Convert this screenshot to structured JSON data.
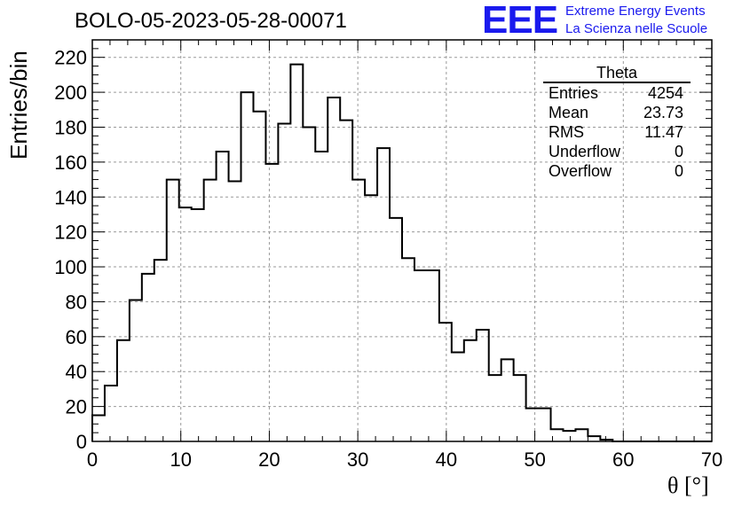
{
  "header": {
    "run_title": "BOLO-05-2023-05-28-00071",
    "logo_text": "EEE",
    "logo_line1": "Extreme Energy Events",
    "logo_line2": "La Scienza nelle Scuole",
    "logo_color": "#1a1aee"
  },
  "stats_box": {
    "title": "Theta",
    "rows": [
      {
        "label": "Entries",
        "value": "4254"
      },
      {
        "label": "Mean",
        "value": "23.73"
      },
      {
        "label": "RMS",
        "value": "11.47"
      },
      {
        "label": "Underflow",
        "value": "0"
      },
      {
        "label": "Overflow",
        "value": "0"
      }
    ]
  },
  "chart_data": {
    "type": "histogram",
    "title": "BOLO-05-2023-05-28-00071",
    "xlabel": "θ [°]",
    "ylabel": "Entries/bin",
    "xlim": [
      0,
      70
    ],
    "ylim": [
      0,
      230
    ],
    "x_ticks": [
      0,
      10,
      20,
      30,
      40,
      50,
      60,
      70
    ],
    "y_ticks": [
      0,
      20,
      40,
      60,
      80,
      100,
      120,
      140,
      160,
      180,
      200,
      220
    ],
    "grid": true,
    "bin_width": 1.4,
    "bin_edges_start": 0,
    "values": [
      15,
      32,
      58,
      81,
      96,
      104,
      150,
      134,
      133,
      150,
      166,
      149,
      200,
      189,
      159,
      182,
      216,
      180,
      166,
      197,
      184,
      150,
      141,
      168,
      128,
      105,
      98,
      98,
      68,
      51,
      58,
      64,
      38,
      47,
      38,
      19,
      19,
      7,
      6,
      7,
      3,
      1,
      0,
      0,
      0,
      0,
      0,
      0,
      0,
      0
    ]
  }
}
